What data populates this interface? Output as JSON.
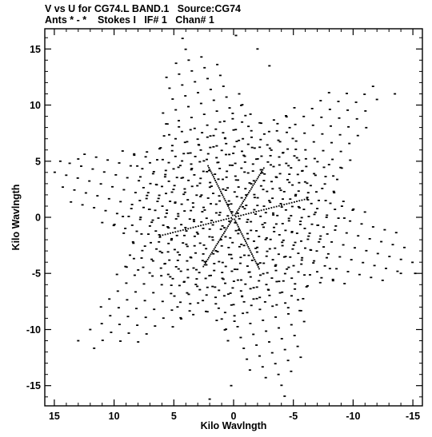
{
  "header": {
    "title": "V vs U for CG74.L BAND.1   Source:CG74",
    "subtitle": "Ants * - *    Stokes I   IF# 1   Chan# 1"
  },
  "chart_data": {
    "type": "scatter",
    "xlabel": "Kilo Wavlngth",
    "ylabel": "Kilo Wavlngth",
    "xlim": [
      15.8,
      -15.8
    ],
    "ylim": [
      -16.8,
      16.8
    ],
    "x_ticks": [
      15,
      10,
      5,
      0,
      -5,
      -10,
      -15
    ],
    "x_tick_labels": [
      "15",
      "10",
      "5",
      "0",
      "-5",
      "-10",
      "-15"
    ],
    "y_ticks": [
      15,
      10,
      5,
      0,
      -5,
      -10,
      -15
    ],
    "y_tick_labels": [
      "15",
      "10",
      "5",
      "0",
      "-5",
      "-10",
      "-15"
    ],
    "minor_tick_step": 1,
    "grid": false,
    "legend": "none",
    "marker_color": "#000000",
    "series": [
      {
        "tracks": [
          {
            "dir_deg": 75,
            "extent": 16.5,
            "step": 1.0,
            "spacing": 1.1,
            "n_tracks": 6,
            "trim": 0.12
          },
          {
            "dir_deg": 15,
            "extent": 16.5,
            "step": 1.0,
            "spacing": 1.1,
            "n_tracks": 6,
            "trim": 0.12
          },
          {
            "dir_deg": 135,
            "extent": 16.5,
            "step": 1.0,
            "spacing": 1.1,
            "n_tracks": 6,
            "trim": 0.12
          }
        ],
        "dense_lines": [
          {
            "dir_deg": 65,
            "r_min": 0.2,
            "r_max": 5.2,
            "step": 0.18
          },
          {
            "dir_deg": 245,
            "r_min": 0.2,
            "r_max": 5.2,
            "step": 0.18
          },
          {
            "dir_deg": 120,
            "r_min": 0.2,
            "r_max": 5.2,
            "step": 0.18
          },
          {
            "dir_deg": 300,
            "r_min": 0.2,
            "r_max": 5.2,
            "step": 0.18
          },
          {
            "dir_deg": 165,
            "r_min": 0.2,
            "r_max": 6.5,
            "step": 0.22
          },
          {
            "dir_deg": 345,
            "r_min": 0.2,
            "r_max": 6.5,
            "step": 0.22
          }
        ],
        "star_tips": [
          [
            -0.2,
            16.2
          ],
          [
            -2.0,
            15.0
          ],
          [
            -3.0,
            13.5
          ],
          [
            2.0,
            -16.2
          ],
          [
            0.2,
            -15.0
          ],
          [
            14.5,
            5.0
          ],
          [
            15.8,
            5.0
          ],
          [
            13.0,
            5.2
          ],
          [
            -13.5,
            11.0
          ],
          [
            -12.0,
            10.5
          ],
          [
            -15.2,
            -5.0
          ],
          [
            -14.0,
            -5.0
          ],
          [
            13.0,
            -11.0
          ],
          [
            12.0,
            -10.0
          ]
        ]
      }
    ]
  }
}
